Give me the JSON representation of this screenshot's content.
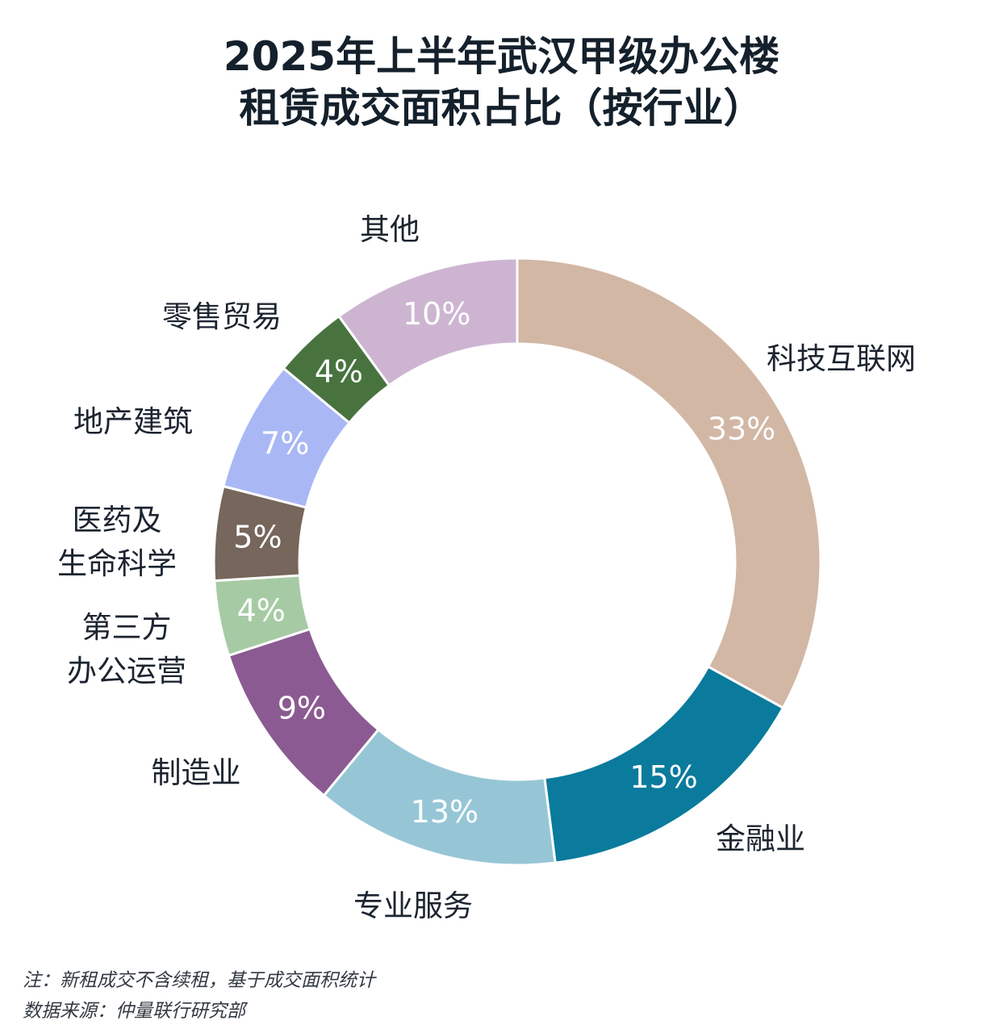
{
  "title": {
    "line1": "2025年上半年武汉甲级办公楼",
    "line2": "租赁成交面积占比（按行业）"
  },
  "chart_data": {
    "type": "pie",
    "variant": "donut",
    "title": "2025年上半年武汉甲级办公楼租赁成交面积占比（按行业）",
    "unit": "%",
    "slices": [
      {
        "label_lines": [
          "科技互联网"
        ],
        "value": 33,
        "display": "33%",
        "color": "#d2b7a5"
      },
      {
        "label_lines": [
          "金融业"
        ],
        "value": 15,
        "display": "15%",
        "color": "#0a7b9c"
      },
      {
        "label_lines": [
          "专业服务"
        ],
        "value": 13,
        "display": "13%",
        "color": "#96c6d6"
      },
      {
        "label_lines": [
          "制造业"
        ],
        "value": 9,
        "display": "9%",
        "color": "#8b5a92"
      },
      {
        "label_lines": [
          "第三方",
          "办公运营"
        ],
        "value": 4,
        "display": "4%",
        "color": "#a6cba4"
      },
      {
        "label_lines": [
          "医药及",
          "生命科学"
        ],
        "value": 5,
        "display": "5%",
        "color": "#76665b"
      },
      {
        "label_lines": [
          "地产建筑"
        ],
        "value": 7,
        "display": "7%",
        "color": "#a9b8f5"
      },
      {
        "label_lines": [
          "零售贸易"
        ],
        "value": 4,
        "display": "4%",
        "color": "#48733f"
      },
      {
        "label_lines": [
          "其他"
        ],
        "value": 10,
        "display": "10%",
        "color": "#cdb5d2"
      }
    ]
  },
  "notes": {
    "note": "注：新租成交不含续租，基于成交面积统计",
    "source": "数据来源：仲量联行研究部"
  }
}
